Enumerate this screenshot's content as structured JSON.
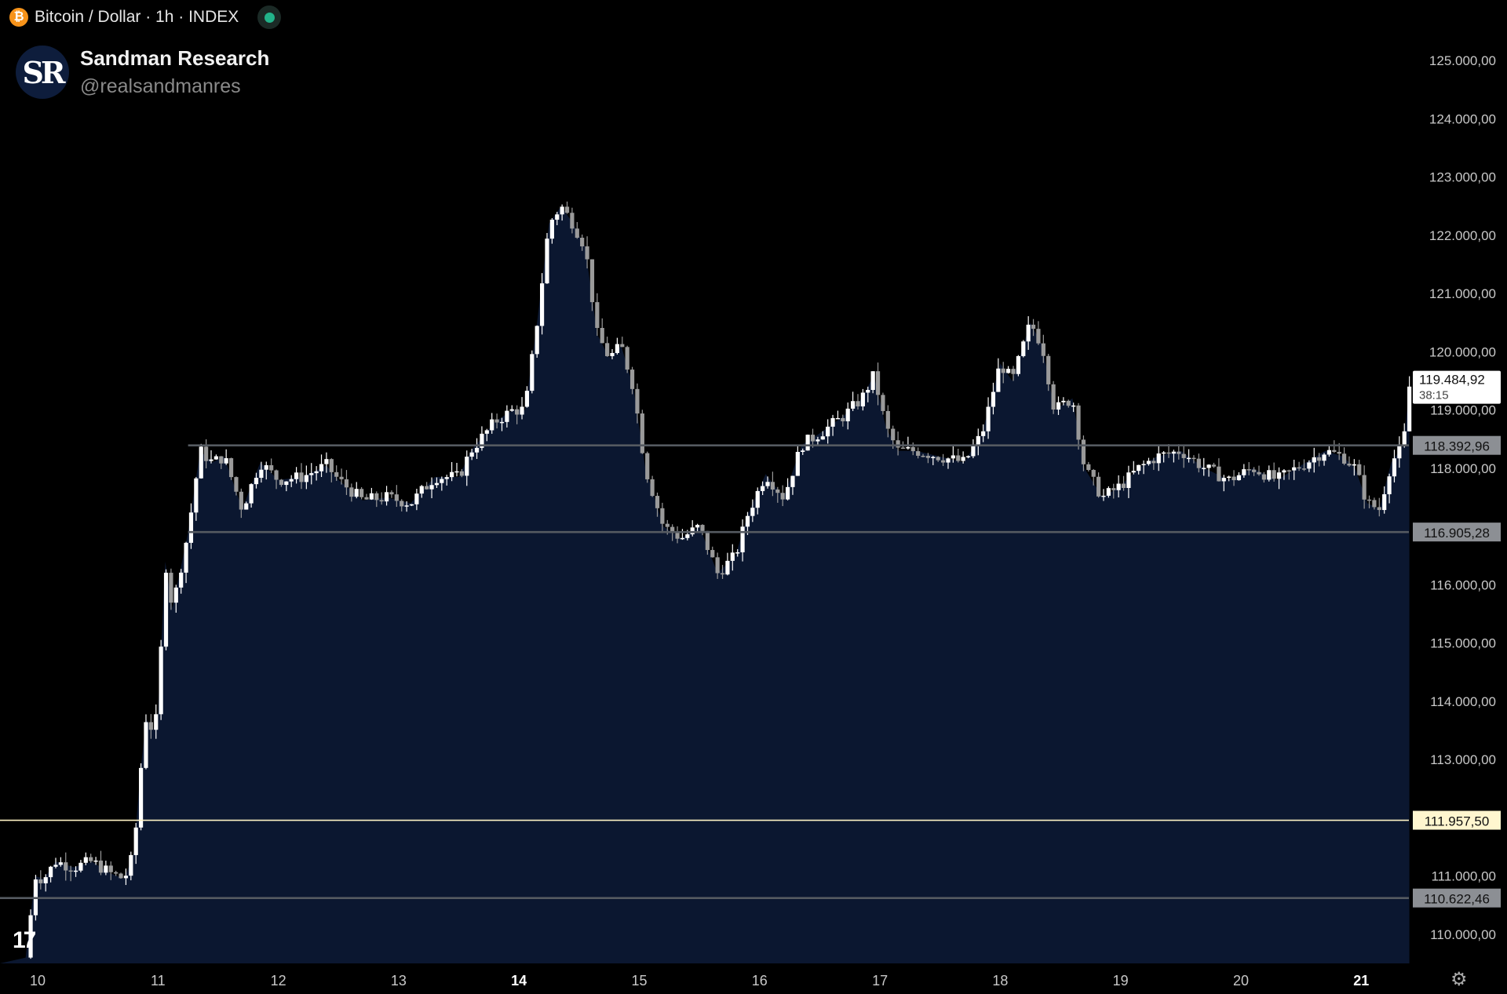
{
  "header": {
    "symbol_icon": "bitcoin-icon",
    "title": "Bitcoin / Dollar · 1h · INDEX",
    "status_icon": "market-status-dot"
  },
  "brand": {
    "avatar_text": "SR",
    "name": "Sandman Research",
    "handle": "@realsandmanres"
  },
  "logo_text": "17",
  "colors": {
    "background": "#000000",
    "area_fill": "#0b1730",
    "candle_up": "#ffffff",
    "candle_down": "#9a9a9a",
    "level_line": "#555a61",
    "highlight_line": "#fff3c4",
    "axis_text": "#c8c8c8"
  },
  "chart_data": {
    "type": "candlestick",
    "ylim": [
      109500,
      125500
    ],
    "y_ticks": [
      {
        "value": 110000,
        "label": "110.000,00"
      },
      {
        "value": 111000,
        "label": "111.000,00"
      },
      {
        "value": 113000,
        "label": "113.000,00"
      },
      {
        "value": 114000,
        "label": "114.000,00"
      },
      {
        "value": 115000,
        "label": "115.000,00"
      },
      {
        "value": 116000,
        "label": "116.000,00"
      },
      {
        "value": 118000,
        "label": "118.000,00"
      },
      {
        "value": 119000,
        "label": "119.000,00"
      },
      {
        "value": 120000,
        "label": "120.000,00"
      },
      {
        "value": 121000,
        "label": "121.000,00"
      },
      {
        "value": 122000,
        "label": "122.000,00"
      },
      {
        "value": 123000,
        "label": "123.000,00"
      },
      {
        "value": 124000,
        "label": "124.000,00"
      },
      {
        "value": 125000,
        "label": "125.000,00"
      }
    ],
    "x_range": [
      9.9,
      21.45
    ],
    "x_ticks": [
      {
        "value": 10,
        "label": "10",
        "bold": false
      },
      {
        "value": 11,
        "label": "11",
        "bold": false
      },
      {
        "value": 12,
        "label": "12",
        "bold": false
      },
      {
        "value": 13,
        "label": "13",
        "bold": false
      },
      {
        "value": 14,
        "label": "14",
        "bold": true
      },
      {
        "value": 15,
        "label": "15",
        "bold": false
      },
      {
        "value": 16,
        "label": "16",
        "bold": false
      },
      {
        "value": 17,
        "label": "17",
        "bold": false
      },
      {
        "value": 18,
        "label": "18",
        "bold": false
      },
      {
        "value": 19,
        "label": "19",
        "bold": false
      },
      {
        "value": 20,
        "label": "20",
        "bold": false
      },
      {
        "value": 21,
        "label": "21",
        "bold": true
      }
    ],
    "close_path": [
      [
        9.9,
        109600
      ],
      [
        9.98,
        111000
      ],
      [
        10.05,
        110950
      ],
      [
        10.15,
        111250
      ],
      [
        10.3,
        111150
      ],
      [
        10.45,
        111250
      ],
      [
        10.6,
        111050
      ],
      [
        10.72,
        110950
      ],
      [
        10.8,
        111400
      ],
      [
        10.85,
        112700
      ],
      [
        10.9,
        113700
      ],
      [
        10.96,
        113500
      ],
      [
        11.0,
        113800
      ],
      [
        11.06,
        116400
      ],
      [
        11.12,
        115600
      ],
      [
        11.2,
        116400
      ],
      [
        11.25,
        116900
      ],
      [
        11.35,
        118300
      ],
      [
        11.45,
        118100
      ],
      [
        11.55,
        118200
      ],
      [
        11.7,
        117300
      ],
      [
        11.85,
        118100
      ],
      [
        12.0,
        117800
      ],
      [
        12.2,
        117850
      ],
      [
        12.4,
        118050
      ],
      [
        12.5,
        117800
      ],
      [
        12.7,
        117450
      ],
      [
        12.9,
        117500
      ],
      [
        13.1,
        117400
      ],
      [
        13.3,
        117850
      ],
      [
        13.5,
        117850
      ],
      [
        13.6,
        118300
      ],
      [
        13.8,
        118800
      ],
      [
        13.95,
        119000
      ],
      [
        14.05,
        119000
      ],
      [
        14.15,
        120500
      ],
      [
        14.25,
        122200
      ],
      [
        14.35,
        122500
      ],
      [
        14.45,
        122200
      ],
      [
        14.55,
        121800
      ],
      [
        14.65,
        120300
      ],
      [
        14.75,
        119900
      ],
      [
        14.85,
        120100
      ],
      [
        14.95,
        119400
      ],
      [
        15.05,
        118000
      ],
      [
        15.2,
        117000
      ],
      [
        15.35,
        116800
      ],
      [
        15.5,
        117000
      ],
      [
        15.65,
        116200
      ],
      [
        15.8,
        116500
      ],
      [
        15.9,
        117200
      ],
      [
        16.05,
        117900
      ],
      [
        16.2,
        117500
      ],
      [
        16.35,
        118400
      ],
      [
        16.5,
        118600
      ],
      [
        16.7,
        118900
      ],
      [
        16.85,
        119200
      ],
      [
        16.95,
        119600
      ],
      [
        17.05,
        118700
      ],
      [
        17.15,
        118300
      ],
      [
        17.3,
        118300
      ],
      [
        17.5,
        118200
      ],
      [
        17.7,
        118100
      ],
      [
        17.85,
        118600
      ],
      [
        18.0,
        119800
      ],
      [
        18.1,
        119500
      ],
      [
        18.25,
        120500
      ],
      [
        18.35,
        120100
      ],
      [
        18.45,
        119000
      ],
      [
        18.6,
        119200
      ],
      [
        18.7,
        118000
      ],
      [
        18.85,
        117500
      ],
      [
        19.0,
        117700
      ],
      [
        19.15,
        118000
      ],
      [
        19.3,
        118200
      ],
      [
        19.5,
        118300
      ],
      [
        19.7,
        118000
      ],
      [
        19.9,
        117800
      ],
      [
        20.1,
        118000
      ],
      [
        20.3,
        117800
      ],
      [
        20.5,
        118050
      ],
      [
        20.7,
        118300
      ],
      [
        20.85,
        118200
      ],
      [
        20.95,
        118000
      ],
      [
        21.05,
        117400
      ],
      [
        21.15,
        117300
      ],
      [
        21.25,
        118100
      ],
      [
        21.35,
        118400
      ],
      [
        21.4,
        119400
      ]
    ],
    "levels": [
      {
        "value": 118392.96,
        "label": "118.392,96",
        "start_x": 11.25,
        "style": "gray"
      },
      {
        "value": 116905.28,
        "label": "116.905,28",
        "start_x": 11.25,
        "style": "gray"
      },
      {
        "value": 111957.5,
        "label": "111.957,50",
        "start_x": 9.9,
        "style": "highlight"
      },
      {
        "value": 110622.46,
        "label": "110.622,46",
        "start_x": 9.9,
        "style": "gray"
      }
    ],
    "last_price": {
      "value": 119484.92,
      "label": "119.484,92",
      "countdown": "38:15"
    }
  }
}
